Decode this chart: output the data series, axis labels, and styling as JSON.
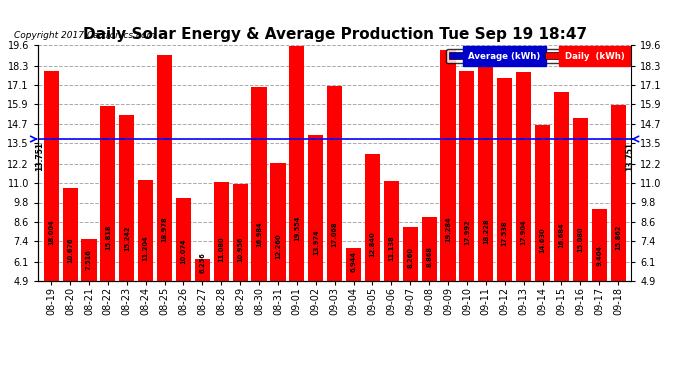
{
  "title": "Daily Solar Energy & Average Production Tue Sep 19 18:47",
  "copyright": "Copyright 2017 Cartronics.com",
  "categories": [
    "08-19",
    "08-20",
    "08-21",
    "08-22",
    "08-23",
    "08-24",
    "08-25",
    "08-26",
    "08-27",
    "08-28",
    "08-29",
    "08-30",
    "08-31",
    "09-01",
    "09-02",
    "09-03",
    "09-04",
    "09-05",
    "09-06",
    "09-07",
    "09-08",
    "09-09",
    "09-10",
    "09-11",
    "09-12",
    "09-13",
    "09-14",
    "09-15",
    "09-16",
    "09-17",
    "09-18"
  ],
  "values": [
    18.004,
    10.676,
    7.516,
    15.818,
    15.242,
    11.204,
    18.978,
    10.074,
    6.256,
    11.08,
    10.956,
    16.984,
    12.26,
    19.554,
    13.974,
    17.068,
    6.944,
    12.84,
    11.138,
    8.26,
    8.868,
    19.284,
    17.992,
    18.228,
    17.538,
    17.904,
    14.63,
    16.684,
    15.08,
    9.404,
    15.862
  ],
  "average": 13.751,
  "average_label": "13.751",
  "bar_color": "#ff0000",
  "average_color": "#0000ff",
  "bg_color": "#ffffff",
  "grid_color": "#aaaaaa",
  "text_color": "#000000",
  "ylim_min": 4.9,
  "ylim_max": 19.6,
  "yticks": [
    4.9,
    6.1,
    7.4,
    8.6,
    9.8,
    11.0,
    12.2,
    13.5,
    14.7,
    15.9,
    17.1,
    18.3,
    19.6
  ],
  "legend_avg_color": "#0000cd",
  "legend_daily_color": "#ff0000",
  "legend_avg_text": "Average (kWh)",
  "legend_daily_text": "Daily  (kWh)",
  "title_fontsize": 11,
  "bar_value_fontsize": 4.8,
  "tick_fontsize": 7,
  "copyright_fontsize": 6.5
}
